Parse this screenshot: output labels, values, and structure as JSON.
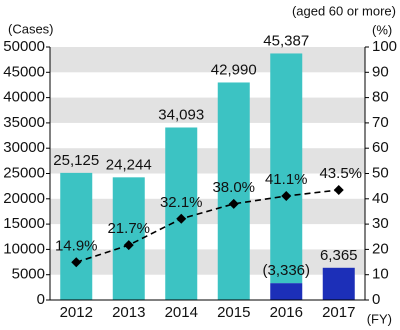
{
  "chart_data": {
    "type": "bar",
    "y_axis_label": "(Cases)",
    "y2_axis_label": "(%)",
    "y2_axis_note": "(aged 60 or more)",
    "x_axis_label": "(FY)",
    "categories": [
      "2012",
      "2013",
      "2014",
      "2015",
      "2016",
      "2017"
    ],
    "series": [
      {
        "color": "#1c2fb8",
        "values": [
          null,
          null,
          null,
          null,
          3336,
          6365
        ],
        "value_labels": [
          null,
          null,
          null,
          null,
          "(3,336)",
          "6,365"
        ]
      },
      {
        "color": "#3cc3c3",
        "values": [
          25125,
          24244,
          34093,
          42990,
          45387,
          null
        ],
        "value_labels": [
          "25,125",
          "24,244",
          "34,093",
          "42,990",
          "45,387",
          null
        ]
      },
      {
        "type": "line",
        "axis": "y2",
        "color": "#000000",
        "line_style": "dashed",
        "marker": "diamond",
        "values": [
          14.9,
          21.7,
          32.1,
          38.0,
          41.1,
          43.5
        ],
        "value_labels": [
          "14.9%",
          "21.7%",
          "32.1%",
          "38.0%",
          "41.1%",
          "43.5%"
        ]
      }
    ],
    "ylim": [
      0,
      50000
    ],
    "yticks": [
      0,
      5000,
      10000,
      15000,
      20000,
      25000,
      30000,
      35000,
      40000,
      45000,
      50000
    ],
    "y2lim": [
      0,
      100
    ],
    "y2ticks": [
      0,
      10,
      20,
      30,
      40,
      50,
      60,
      70,
      80,
      90,
      100
    ],
    "grid": "bands",
    "grid_color": "#e2e2e2"
  }
}
